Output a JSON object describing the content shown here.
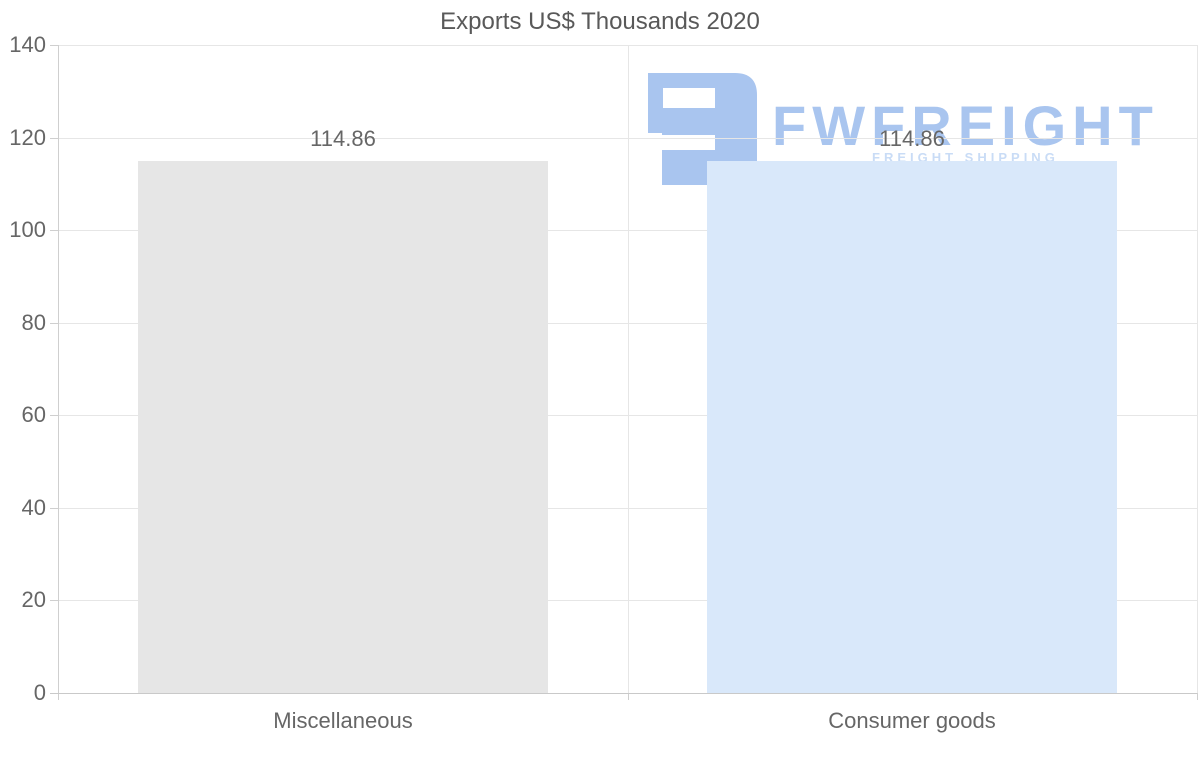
{
  "chart_data": {
    "type": "bar",
    "title": "Exports US$ Thousands 2020",
    "categories": [
      "Miscellaneous",
      "Consumer goods"
    ],
    "series": [
      {
        "name": "Exports US$ Thousands 2020",
        "values": [
          114.86,
          114.86
        ]
      }
    ],
    "value_labels": [
      "114.86",
      "114.86"
    ],
    "bar_colors": [
      "#e6e6e6",
      "#d9e8fa"
    ],
    "xlabel": "",
    "ylabel": "",
    "ylim": [
      0,
      140
    ],
    "yticks": [
      0,
      20,
      40,
      60,
      80,
      100,
      120,
      140
    ],
    "grid": "horizontal gridlines + category boundary verticals",
    "legend": "none"
  },
  "watermark": {
    "text": "FWFREIGHT",
    "tagline": "FREIGHT SHIPPING",
    "logo": "fwfreight-logo",
    "logo_color": "#a9c5ef",
    "tagline_color": "#c9dcf6"
  },
  "colors": {
    "title_text": "#595959",
    "axis_text": "#666666",
    "gridline": "#e6e6e6",
    "axis_line": "#c9c9c9",
    "background": "#ffffff"
  }
}
